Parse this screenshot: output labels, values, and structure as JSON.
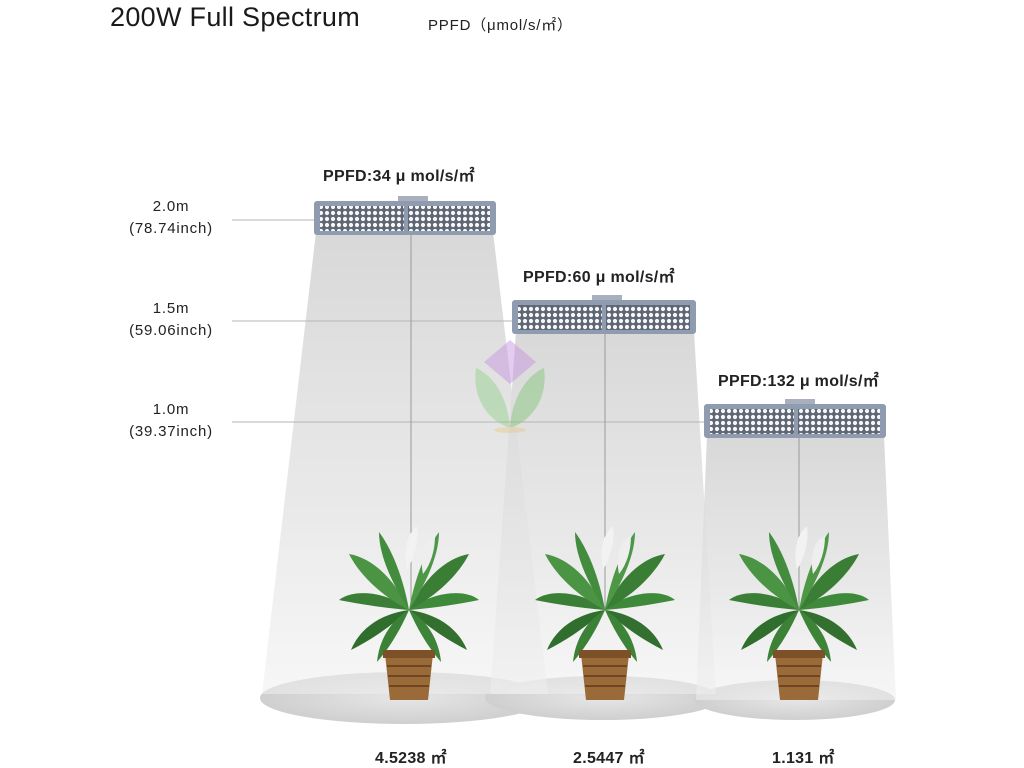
{
  "header": {
    "title": "200W Full Spectrum",
    "subtitle": "PPFD（μmol/s/㎡）"
  },
  "heights": [
    {
      "meters": "2.0m",
      "inches": "(78.74inch)"
    },
    {
      "meters": "1.5m",
      "inches": "(59.06inch)"
    },
    {
      "meters": "1.0m",
      "inches": "(39.37inch)"
    }
  ],
  "lamps": [
    {
      "ppfd": "PPFD:34 μ mol/s/㎡",
      "area": "4.5238 ㎡"
    },
    {
      "ppfd": "PPFD:60 μ mol/s/㎡",
      "area": "2.5447 ㎡"
    },
    {
      "ppfd": "PPFD:132 μ mol/s/㎡",
      "area": "1.131 ㎡"
    }
  ],
  "colors": {
    "lamp_body": "#8f9bae",
    "led": "#f4f4f4",
    "beam": "#cfcfcf",
    "leaf": "#3f8a3a",
    "pot": "#9a6a38"
  },
  "icons": [
    "plant-icon",
    "led-panel-icon",
    "watermark-logo-icon"
  ]
}
